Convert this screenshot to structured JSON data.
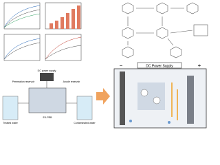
{
  "panels": {
    "power_supply_title": "DC Power Supply",
    "apparatus_power": "DC power supply",
    "treated": "Treated water",
    "contaminated": "Contaminated water",
    "permeation": "Permeation reservoir",
    "anode": "Anode reservoir",
    "ek_prb": "EK-PRB",
    "minus": "−",
    "plus": "+"
  }
}
